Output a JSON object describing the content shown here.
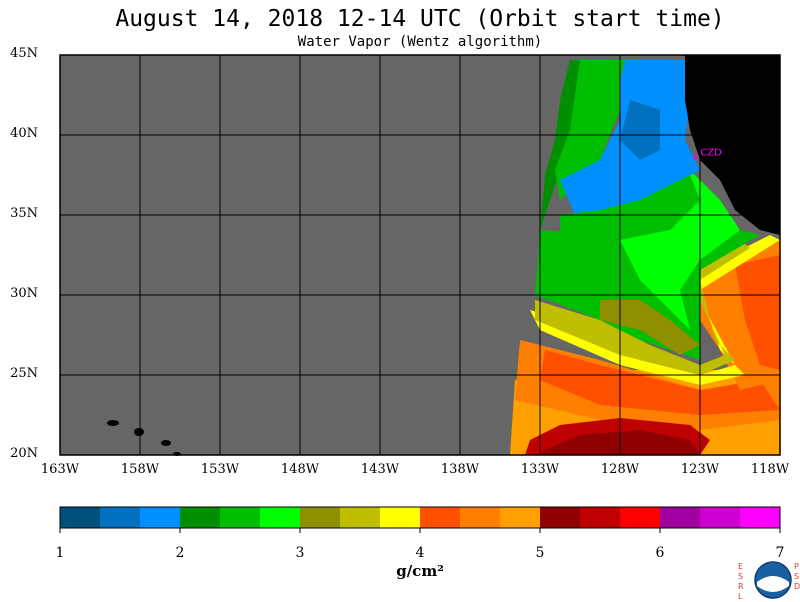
{
  "title": "August 14, 2018  12-14 UTC  (Orbit start time)",
  "subtitle": "Water Vapor (Wentz algorithm)",
  "station_label": "CZD",
  "units": "g/cm²",
  "logo": {
    "name": "noaa-esrl-psd-logo",
    "left_letters": "E S R L",
    "right_letters": "P S D"
  },
  "colors": {
    "background": "#666666",
    "land": "#000000",
    "grid": "#000000",
    "station": "#ff00ff"
  },
  "chart_data": {
    "type": "heatmap",
    "title": "August 14, 2018  12-14 UTC  (Orbit start time)",
    "subtitle": "Water Vapor (Wentz algorithm)",
    "xlabel": "",
    "ylabel": "",
    "xlim": [
      -163,
      -118
    ],
    "ylim": [
      20,
      45
    ],
    "x_ticks": [
      "163W",
      "158W",
      "153W",
      "148W",
      "143W",
      "138W",
      "133W",
      "128W",
      "123W",
      "118W"
    ],
    "y_ticks": [
      "45N",
      "40N",
      "35N",
      "30N",
      "25N",
      "20N"
    ],
    "grid": true,
    "colorbar": {
      "label": "g/cm²",
      "range": [
        1,
        7
      ],
      "ticks": [
        "1",
        "2",
        "3",
        "4",
        "5",
        "6",
        "7"
      ],
      "colors": [
        "#00507f",
        "#0070bf",
        "#0090ff",
        "#008f00",
        "#00bf00",
        "#00ff00",
        "#8f8f00",
        "#bfbf00",
        "#ffff00",
        "#ff5000",
        "#ff7f00",
        "#ffa000",
        "#8f0000",
        "#bf0000",
        "#ff0000",
        "#9f009f",
        "#cf00cf",
        "#ff00ff"
      ]
    },
    "station": {
      "name": "CZD",
      "lon": -123.3,
      "lat": 38.6
    },
    "field_bands": [
      {
        "lat_max": 45,
        "lat_min": 41,
        "value": 2.6,
        "note": "north-west region green"
      },
      {
        "lat_max": 42,
        "lat_min": 35,
        "value": 1.8,
        "note": "coastal blue"
      },
      {
        "lat_max": 35,
        "lat_min": 30,
        "value": 2.8,
        "note": "green band"
      },
      {
        "lat_max": 30,
        "lat_min": 27,
        "value": 3.7,
        "note": "yellow band"
      },
      {
        "lat_max": 27,
        "lat_min": 23,
        "value": 4.8,
        "note": "orange band"
      },
      {
        "lat_max": 22,
        "lat_min": 20,
        "value": 5.4,
        "note": "dark red"
      }
    ]
  }
}
